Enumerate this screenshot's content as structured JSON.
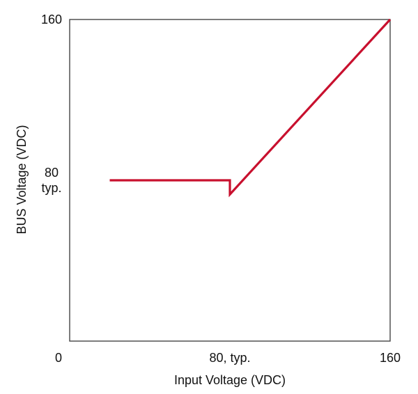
{
  "chart_data": {
    "type": "line",
    "xlabel": "Input Voltage (VDC)",
    "ylabel": "BUS Voltage (VDC)",
    "xlim": [
      0,
      160
    ],
    "ylim": [
      0,
      160
    ],
    "grid": false,
    "x_ticks": [
      {
        "value": 0,
        "label": "0"
      },
      {
        "value": 80,
        "label": "80, typ."
      },
      {
        "value": 160,
        "label": "160"
      }
    ],
    "y_ticks": [
      {
        "value": 160,
        "label": "160"
      },
      {
        "value": 80,
        "label": "80\ntyp."
      }
    ],
    "colors": {
      "series": "#c8102e",
      "frame": "#444444"
    },
    "series": [
      {
        "x": [
          20,
          80,
          80,
          160
        ],
        "y": [
          80,
          80,
          73,
          160
        ]
      }
    ]
  }
}
